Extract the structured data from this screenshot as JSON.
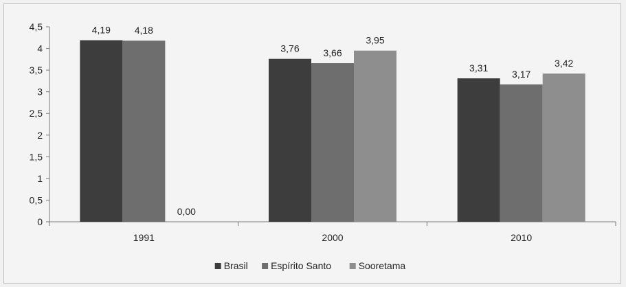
{
  "chart_data": {
    "type": "bar",
    "categories": [
      "1991",
      "2000",
      "2010"
    ],
    "series": [
      {
        "name": "Brasil",
        "values": [
          4.19,
          3.76,
          3.31
        ],
        "labels": [
          "4,19",
          "3,76",
          "3,31"
        ],
        "color": "#3d3d3d"
      },
      {
        "name": "Espírito Santo",
        "values": [
          4.18,
          3.66,
          3.17
        ],
        "labels": [
          "4,18",
          "3,66",
          "3,17"
        ],
        "color": "#6e6e6e"
      },
      {
        "name": "Sooretama",
        "values": [
          0.0,
          3.95,
          3.42
        ],
        "labels": [
          "0,00",
          "3,95",
          "3,42"
        ],
        "color": "#8e8e8e"
      }
    ],
    "ylim": [
      0,
      4.5
    ],
    "yticks": [
      0,
      0.5,
      1,
      1.5,
      2,
      2.5,
      3,
      3.5,
      4,
      4.5
    ],
    "ytick_labels": [
      "0",
      "0,5",
      "1",
      "1,5",
      "2",
      "2,5",
      "3",
      "3,5",
      "4",
      "4,5"
    ],
    "grid": false,
    "legend_position": "bottom"
  }
}
